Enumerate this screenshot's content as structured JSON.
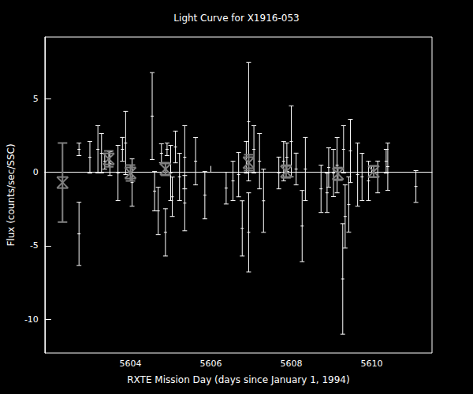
{
  "chart_data": {
    "type": "scatter",
    "title": "Light Curve for X1916-053",
    "x_label": "RXTE Mission Day (days since January 1, 1994)",
    "y_label": "Flux (counts/sec/SSC)",
    "xlim": [
      5601.87,
      5611.5
    ],
    "xticks": [
      5604,
      5606,
      5608,
      5610
    ],
    "ylim": [
      -12.3,
      9.2
    ],
    "yticks": [
      -10,
      -5,
      0,
      5
    ],
    "grid": false,
    "series": [
      {
        "color": "#ffffff",
        "marker": "point",
        "x": [
          5602.72,
          5602.72,
          5602.99,
          5603.19,
          5603.28,
          5603.36,
          5603.49,
          5603.69,
          5603.8,
          5603.88,
          5604.04,
          5604.54,
          5604.6,
          5604.69,
          5604.77,
          5604.87,
          5604.91,
          5605.0,
          5605.04,
          5605.12,
          5605.22,
          5605.35,
          5605.35,
          5605.62,
          5605.85,
          5606.38,
          5606.55,
          5606.69,
          5606.78,
          5606.88,
          5606.94,
          5606.94,
          5607.07,
          5607.21,
          5607.31,
          5607.69,
          5607.81,
          5607.89,
          5608.0,
          5608.12,
          5608.27,
          5608.35,
          5608.74,
          5608.89,
          5608.93,
          5609.05,
          5609.14,
          5609.28,
          5609.3,
          5609.34,
          5609.43,
          5609.47,
          5609.65,
          5609.76,
          5609.92,
          5610.15,
          5610.36,
          5610.4,
          5611.1
        ],
        "values": [
          1.56,
          -4.19,
          1.02,
          1.56,
          1.29,
          0.75,
          0.59,
          -0.05,
          1.56,
          1.99,
          -0.7,
          3.82,
          -1.29,
          -2.63,
          1.29,
          -4.09,
          1.56,
          -0.05,
          -1.67,
          1.72,
          -0.32,
          -2.1,
          1.02,
          0.75,
          -1.56,
          -1.08,
          -0.59,
          -0.16,
          -3.82,
          1.02,
          3.44,
          -4.09,
          1.56,
          0.75,
          -1.94,
          -0.05,
          0.75,
          1.02,
          2.1,
          0.22,
          -3.66,
          0.22,
          -1.13,
          -1.4,
          0.32,
          -0.05,
          0.48,
          -7.26,
          1.56,
          -3.01,
          -2.2,
          1.45,
          -0.16,
          -0.32,
          -0.59,
          -0.32,
          0.75,
          0.38,
          -0.97
        ],
        "errors": [
          0.43,
          2.15,
          1.08,
          1.61,
          1.34,
          0.54,
          0.81,
          1.88,
          0.81,
          2.15,
          1.61,
          2.96,
          1.34,
          1.61,
          0.65,
          1.61,
          0.43,
          1.88,
          1.34,
          1.08,
          1.61,
          1.88,
          2.15,
          1.61,
          1.61,
          1.08,
          1.34,
          1.51,
          1.88,
          1.08,
          4.03,
          2.69,
          1.61,
          1.88,
          2.15,
          1.08,
          1.34,
          0.97,
          2.42,
          1.08,
          2.42,
          2.15,
          1.61,
          1.34,
          1.34,
          1.61,
          1.88,
          3.76,
          1.61,
          2.15,
          1.88,
          2.15,
          2.15,
          1.61,
          1.34,
          1.08,
          0.81,
          1.61,
          1.08
        ]
      },
      {
        "color": "#808080",
        "marker": "x",
        "x": [
          5602.31,
          5603.46,
          5604.0,
          5604.87,
          5606.94,
          5607.87,
          5609.16,
          5610.05
        ],
        "values": [
          -0.7,
          0.91,
          -0.05,
          0.22,
          0.65,
          0.05,
          -0.11,
          0.05
        ],
        "errors": [
          2.69,
          0.54,
          0.54,
          0.43,
          0.54,
          0.43,
          0.43,
          0.38
        ]
      }
    ]
  }
}
